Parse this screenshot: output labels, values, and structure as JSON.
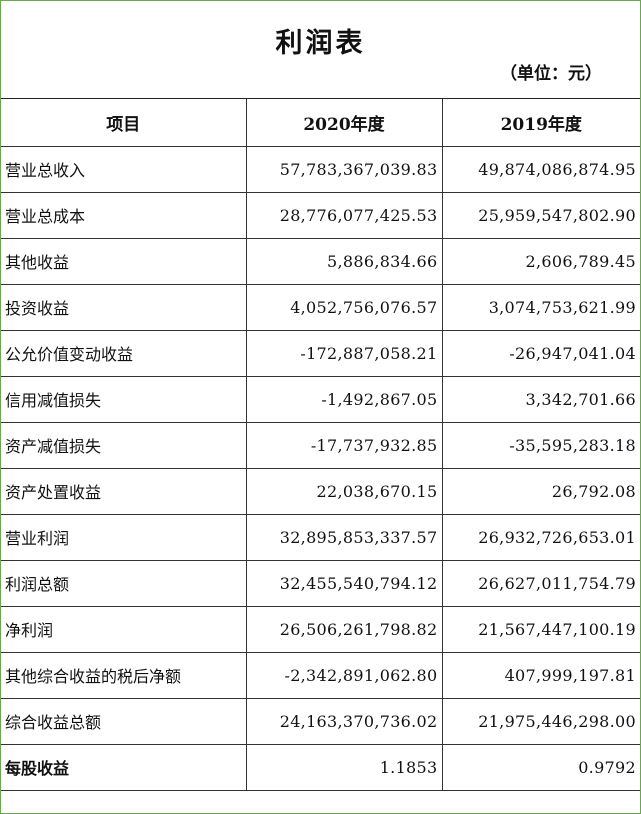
{
  "title": "利润表",
  "unit": "（单位：元）",
  "headers": [
    "项目",
    "2020年度",
    "2019年度"
  ],
  "rows": [
    {
      "label": "营业总收入",
      "y2020": "57,783,367,039.83",
      "y2019": "49,874,086,874.95"
    },
    {
      "label": "营业总成本",
      "y2020": "28,776,077,425.53",
      "y2019": "25,959,547,802.90"
    },
    {
      "label": "其他收益",
      "y2020": "5,886,834.66",
      "y2019": "2,606,789.45"
    },
    {
      "label": "投资收益",
      "y2020": "4,052,756,076.57",
      "y2019": "3,074,753,621.99"
    },
    {
      "label": "公允价值变动收益",
      "y2020": "-172,887,058.21",
      "y2019": "-26,947,041.04"
    },
    {
      "label": "信用减值损失",
      "y2020": "-1,492,867.05",
      "y2019": "3,342,701.66"
    },
    {
      "label": "资产减值损失",
      "y2020": "-17,737,932.85",
      "y2019": "-35,595,283.18"
    },
    {
      "label": "资产处置收益",
      "y2020": "22,038,670.15",
      "y2019": "26,792.08"
    },
    {
      "label": "营业利润",
      "y2020": "32,895,853,337.57",
      "y2019": "26,932,726,653.01"
    },
    {
      "label": "利润总额",
      "y2020": "32,455,540,794.12",
      "y2019": "26,627,011,754.79"
    },
    {
      "label": "净利润",
      "y2020": "26,506,261,798.82",
      "y2019": "21,567,447,100.19"
    },
    {
      "label": "其他综合收益的税后净额",
      "y2020": "-2,342,891,062.80",
      "y2019": "407,999,197.81"
    },
    {
      "label": "综合收益总额",
      "y2020": "24,163,370,736.02",
      "y2019": "21,975,446,298.00"
    },
    {
      "label": "每股收益",
      "y2020": "1.1853",
      "y2019": "0.9792"
    }
  ]
}
